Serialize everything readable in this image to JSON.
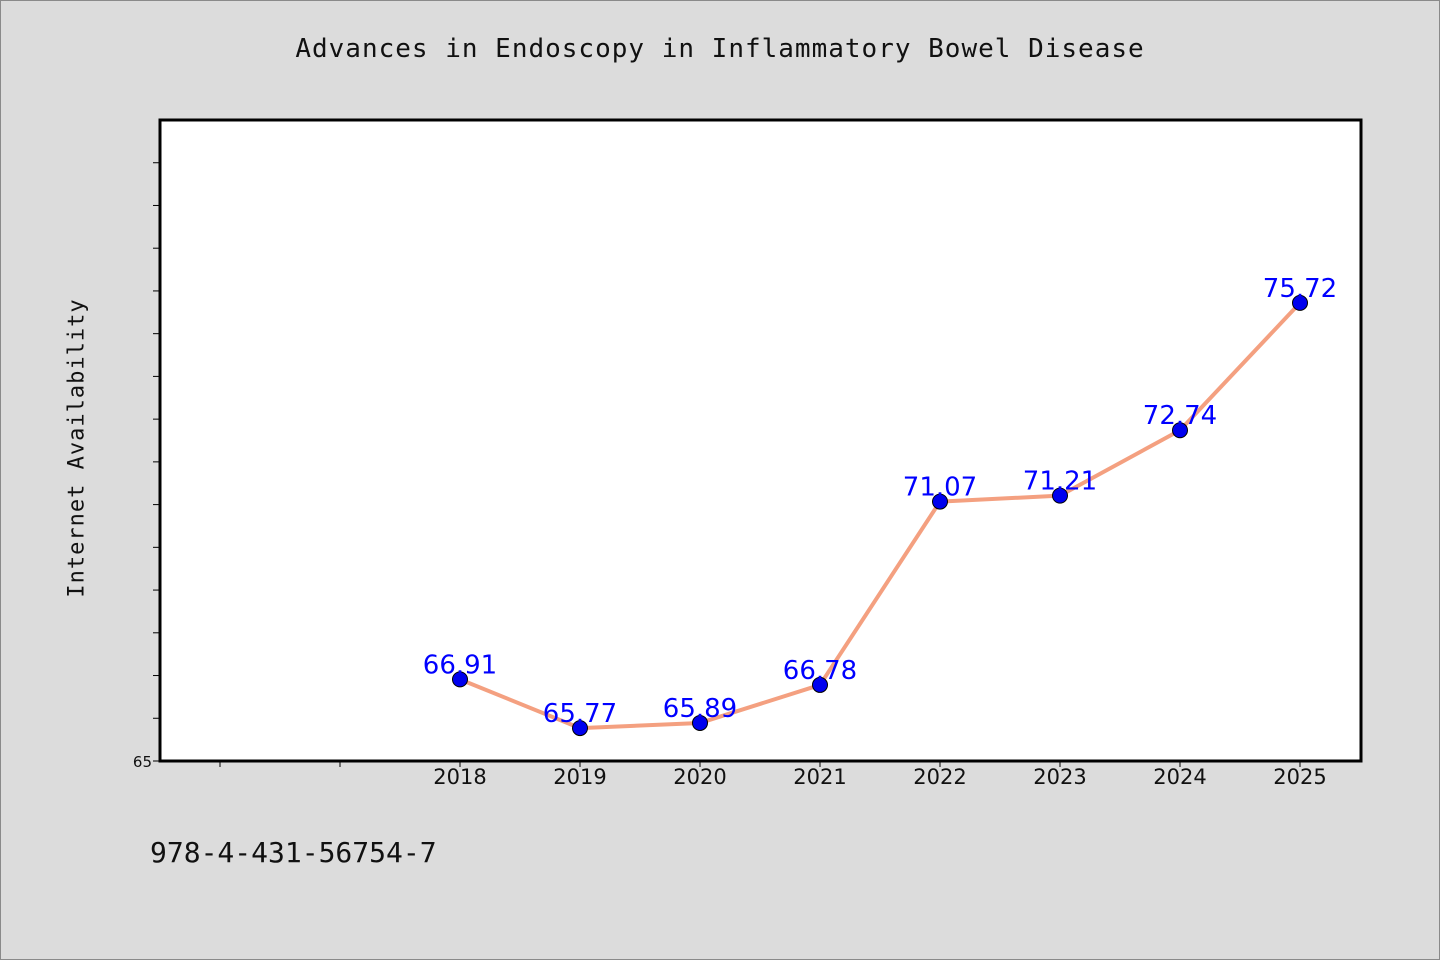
{
  "chart_data": {
    "type": "line",
    "title": "Advances in Endoscopy in Inflammatory Bowel Disease",
    "xlabel": "",
    "ylabel": "Internet Availability",
    "categories": [
      "2018",
      "2019",
      "2020",
      "2021",
      "2022",
      "2023",
      "2024",
      "2025"
    ],
    "series": [
      {
        "values": [
          66.91,
          65.77,
          65.89,
          66.78,
          71.07,
          71.21,
          72.74,
          75.72
        ],
        "labels": [
          "66.91",
          "65.77",
          "65.89",
          "66.78",
          "71.07",
          "71.21",
          "72.74",
          "75.72"
        ],
        "line_color": "#f4a080",
        "marker_color": "#0000ee",
        "label_color": "#0000ff"
      }
    ],
    "ylim": [
      65,
      80
    ],
    "y_tick_labels": [
      "65"
    ],
    "x_tick_extra_slots": 2,
    "grid": false,
    "legend": "none"
  },
  "footer": {
    "code": "978-4-431-56754-7"
  }
}
